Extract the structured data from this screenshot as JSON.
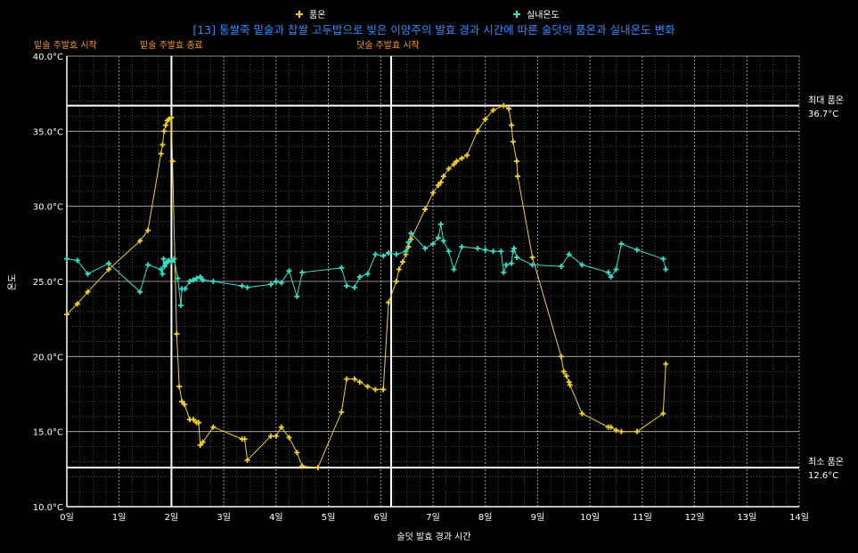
{
  "chart_data": {
    "type": "line",
    "title": "[13] 통쌀죽 밑술과 찹쌀 고두밥으로 빚은 이양주의 발효 경과 시간에 따른 술덧의 품온과 실내온도 변화",
    "xlabel": "술덧 발효 경과 시간",
    "ylabel": "온도",
    "xlim": [
      0,
      14
    ],
    "ylim": [
      10,
      40
    ],
    "x_ticks": [
      "0일",
      "1일",
      "2일",
      "3일",
      "4일",
      "5일",
      "6일",
      "7일",
      "8일",
      "9일",
      "10일",
      "11일",
      "12일",
      "13일",
      "14일"
    ],
    "y_ticks": [
      "10.0°C",
      "15.0°C",
      "20.0°C",
      "25.0°C",
      "30.0°C",
      "35.0°C",
      "40.0°C"
    ],
    "grid": true,
    "legend_position": "top",
    "background": "#000000",
    "series": [
      {
        "name": "품온",
        "color": "#f2d024",
        "points": [
          [
            0.0,
            22.8
          ],
          [
            0.2,
            23.5
          ],
          [
            0.4,
            24.3
          ],
          [
            0.8,
            25.8
          ],
          [
            1.4,
            27.7
          ],
          [
            1.55,
            28.4
          ],
          [
            1.8,
            33.5
          ],
          [
            1.83,
            34.1
          ],
          [
            1.86,
            35.0
          ],
          [
            1.89,
            35.4
          ],
          [
            1.92,
            35.7
          ],
          [
            1.95,
            35.8
          ],
          [
            2.0,
            35.9
          ],
          [
            2.02,
            33.0
          ],
          [
            2.1,
            21.5
          ],
          [
            2.15,
            18.0
          ],
          [
            2.2,
            17.0
          ],
          [
            2.25,
            16.8
          ],
          [
            2.35,
            15.8
          ],
          [
            2.42,
            15.8
          ],
          [
            2.48,
            15.6
          ],
          [
            2.52,
            15.6
          ],
          [
            2.55,
            14.1
          ],
          [
            2.6,
            14.3
          ],
          [
            2.8,
            15.3
          ],
          [
            3.35,
            14.5
          ],
          [
            3.4,
            14.5
          ],
          [
            3.45,
            13.1
          ],
          [
            3.9,
            14.7
          ],
          [
            4.0,
            14.7
          ],
          [
            4.1,
            15.3
          ],
          [
            4.25,
            14.6
          ],
          [
            4.4,
            13.6
          ],
          [
            4.5,
            12.7
          ],
          [
            4.8,
            12.6
          ],
          [
            5.25,
            16.3
          ],
          [
            5.35,
            18.5
          ],
          [
            5.5,
            18.5
          ],
          [
            5.6,
            18.3
          ],
          [
            5.75,
            18.0
          ],
          [
            5.9,
            17.8
          ],
          [
            6.05,
            17.8
          ],
          [
            6.15,
            23.6
          ],
          [
            6.3,
            25.0
          ],
          [
            6.35,
            25.8
          ],
          [
            6.42,
            26.3
          ],
          [
            6.48,
            26.8
          ],
          [
            6.53,
            27.3
          ],
          [
            6.58,
            27.8
          ],
          [
            6.85,
            29.8
          ],
          [
            7.0,
            30.9
          ],
          [
            7.1,
            31.4
          ],
          [
            7.15,
            31.6
          ],
          [
            7.2,
            32.0
          ],
          [
            7.3,
            32.5
          ],
          [
            7.4,
            32.8
          ],
          [
            7.45,
            33.0
          ],
          [
            7.55,
            33.2
          ],
          [
            7.65,
            33.4
          ],
          [
            7.85,
            35.0
          ],
          [
            8.0,
            35.8
          ],
          [
            8.15,
            36.4
          ],
          [
            8.35,
            36.7
          ],
          [
            8.45,
            36.5
          ],
          [
            8.5,
            35.4
          ],
          [
            8.53,
            34.3
          ],
          [
            8.6,
            33.0
          ],
          [
            8.62,
            32.0
          ],
          [
            8.9,
            26.6
          ],
          [
            9.45,
            20.0
          ],
          [
            9.5,
            19.0
          ],
          [
            9.55,
            18.7
          ],
          [
            9.6,
            18.3
          ],
          [
            9.62,
            18.1
          ],
          [
            9.85,
            16.2
          ],
          [
            10.35,
            15.3
          ],
          [
            10.4,
            15.3
          ],
          [
            10.5,
            15.1
          ],
          [
            10.6,
            15.0
          ],
          [
            10.9,
            15.0
          ],
          [
            11.4,
            16.2
          ],
          [
            11.45,
            19.5
          ]
        ]
      },
      {
        "name": "실내온도",
        "color": "#34e0c8",
        "points": [
          [
            0.0,
            26.5
          ],
          [
            0.2,
            26.4
          ],
          [
            0.4,
            25.5
          ],
          [
            0.8,
            26.2
          ],
          [
            1.4,
            24.3
          ],
          [
            1.55,
            26.1
          ],
          [
            1.8,
            25.8
          ],
          [
            1.83,
            25.5
          ],
          [
            1.85,
            26.5
          ],
          [
            1.87,
            26.0
          ],
          [
            1.9,
            26.2
          ],
          [
            1.92,
            26.3
          ],
          [
            1.95,
            26.4
          ],
          [
            2.0,
            26.3
          ],
          [
            2.05,
            26.5
          ],
          [
            2.12,
            25.2
          ],
          [
            2.18,
            23.4
          ],
          [
            2.2,
            24.5
          ],
          [
            2.26,
            24.5
          ],
          [
            2.35,
            25.0
          ],
          [
            2.42,
            25.1
          ],
          [
            2.48,
            25.2
          ],
          [
            2.55,
            25.3
          ],
          [
            2.6,
            25.1
          ],
          [
            2.8,
            25.0
          ],
          [
            3.35,
            24.7
          ],
          [
            3.45,
            24.6
          ],
          [
            3.9,
            24.8
          ],
          [
            4.0,
            25.0
          ],
          [
            4.1,
            24.9
          ],
          [
            4.25,
            25.7
          ],
          [
            4.4,
            24.0
          ],
          [
            4.5,
            25.6
          ],
          [
            5.25,
            25.9
          ],
          [
            5.35,
            24.7
          ],
          [
            5.5,
            24.6
          ],
          [
            5.6,
            25.3
          ],
          [
            5.75,
            25.5
          ],
          [
            5.9,
            26.8
          ],
          [
            6.05,
            26.7
          ],
          [
            6.15,
            26.9
          ],
          [
            6.3,
            26.8
          ],
          [
            6.48,
            27.0
          ],
          [
            6.53,
            27.6
          ],
          [
            6.58,
            28.2
          ],
          [
            6.85,
            27.2
          ],
          [
            7.0,
            27.5
          ],
          [
            7.1,
            27.9
          ],
          [
            7.15,
            28.8
          ],
          [
            7.2,
            27.7
          ],
          [
            7.3,
            27.0
          ],
          [
            7.4,
            25.8
          ],
          [
            7.55,
            27.3
          ],
          [
            7.85,
            27.2
          ],
          [
            8.0,
            27.1
          ],
          [
            8.15,
            27.0
          ],
          [
            8.3,
            27.0
          ],
          [
            8.35,
            25.6
          ],
          [
            8.4,
            26.1
          ],
          [
            8.5,
            26.2
          ],
          [
            8.53,
            27.0
          ],
          [
            8.55,
            27.2
          ],
          [
            8.6,
            26.6
          ],
          [
            8.9,
            26.1
          ],
          [
            9.45,
            26.0
          ],
          [
            9.6,
            26.8
          ],
          [
            9.85,
            26.1
          ],
          [
            10.35,
            25.6
          ],
          [
            10.4,
            25.3
          ],
          [
            10.5,
            25.8
          ],
          [
            10.6,
            27.5
          ],
          [
            10.9,
            27.1
          ],
          [
            11.4,
            26.5
          ],
          [
            11.45,
            25.8
          ]
        ]
      }
    ],
    "vertical_lines": [
      {
        "x": 2.0,
        "label": "밑술 주발효 종료",
        "color": "#ff9a1f"
      },
      {
        "x": 6.2,
        "label": "덧술 주발효 시작",
        "color": "#ff9a1f"
      }
    ],
    "left_annotation": {
      "label": "밑술 주발효 시작",
      "color": "#ff9a1f"
    },
    "horizontal_lines": [
      {
        "y": 36.7,
        "label_line1": "최대 품온",
        "label_line2": "36.7°C"
      },
      {
        "y": 12.6,
        "label_line1": "최소 품온",
        "label_line2": "12.6°C"
      }
    ],
    "title_color": "#2d8cff"
  }
}
